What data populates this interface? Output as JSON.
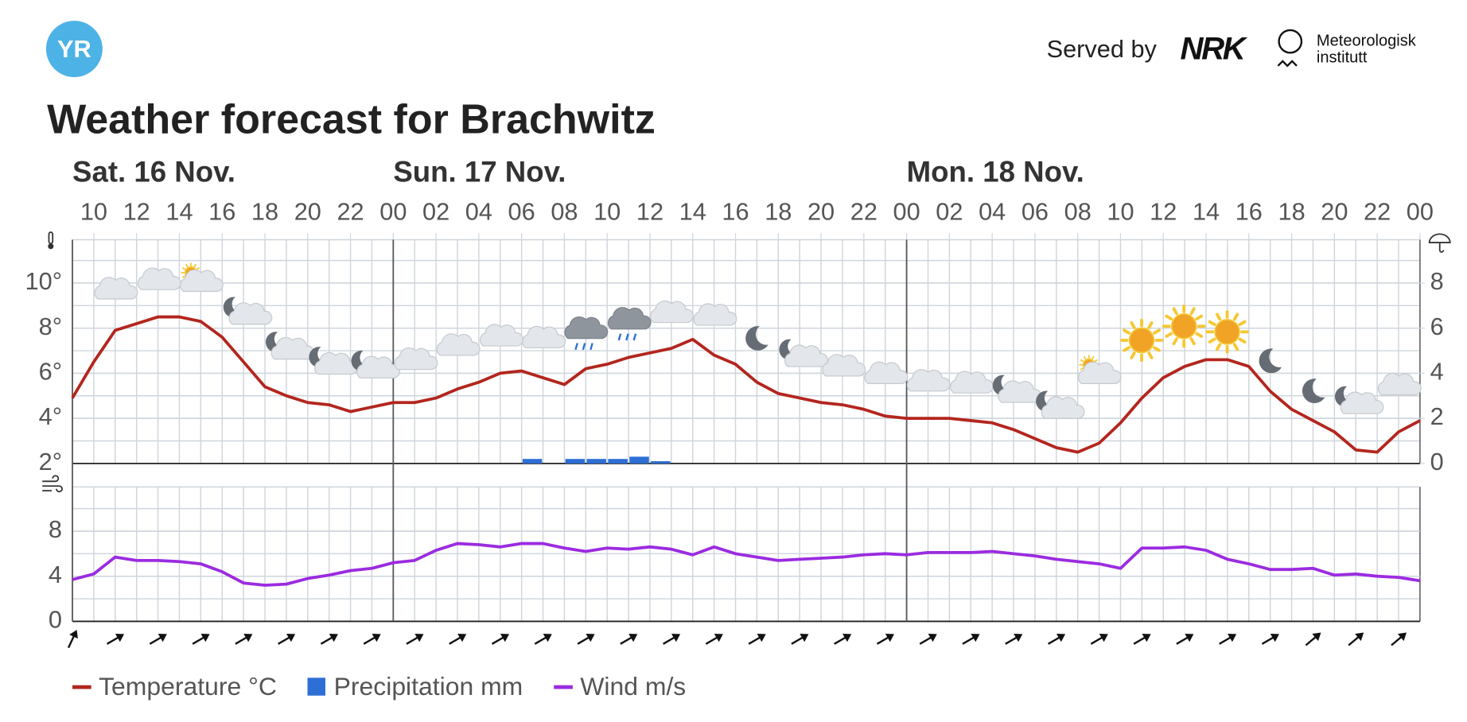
{
  "header": {
    "logo": "YR",
    "served_by": "Served by",
    "nrk": "NRK",
    "met": [
      "Meteorologisk",
      "institutt"
    ]
  },
  "title": "Weather forecast for Brachwitz",
  "chart_data": [
    {
      "type": "line",
      "days": [
        "Sat. 16 Nov.",
        "Sun. 17 Nov.",
        "Mon. 18 Nov."
      ],
      "day_starts": [
        9,
        24,
        48
      ],
      "x": [
        9,
        10,
        11,
        12,
        13,
        14,
        15,
        16,
        17,
        18,
        19,
        20,
        21,
        22,
        23,
        24,
        25,
        26,
        27,
        28,
        29,
        30,
        31,
        32,
        33,
        34,
        35,
        36,
        37,
        38,
        39,
        40,
        41,
        42,
        43,
        44,
        45,
        46,
        47,
        48,
        49,
        50,
        51,
        52,
        53,
        54,
        55,
        56,
        57,
        58,
        59,
        60,
        61,
        62,
        63,
        64,
        65,
        66,
        67,
        68,
        69,
        70,
        71,
        72
      ],
      "xlim": [
        9,
        72
      ],
      "xticks": [
        10,
        12,
        14,
        16,
        18,
        20,
        22,
        {
          "value": 24,
          "label": "00"
        },
        {
          "value": 26,
          "label": "02"
        },
        {
          "value": 28,
          "label": "04"
        },
        {
          "value": 30,
          "label": "06"
        },
        {
          "value": 32,
          "label": "08"
        },
        {
          "value": 34,
          "label": "10"
        },
        {
          "value": 36,
          "label": "12"
        },
        {
          "value": 38,
          "label": "14"
        },
        {
          "value": 40,
          "label": "16"
        },
        {
          "value": 42,
          "label": "18"
        },
        {
          "value": 44,
          "label": "20"
        },
        {
          "value": 46,
          "label": "22"
        },
        {
          "value": 48,
          "label": "00"
        },
        {
          "value": 50,
          "label": "02"
        },
        {
          "value": 52,
          "label": "04"
        },
        {
          "value": 54,
          "label": "06"
        },
        {
          "value": 56,
          "label": "08"
        },
        {
          "value": 58,
          "label": "10"
        },
        {
          "value": 60,
          "label": "12"
        },
        {
          "value": 62,
          "label": "14"
        },
        {
          "value": 64,
          "label": "16"
        },
        {
          "value": 66,
          "label": "18"
        },
        {
          "value": 68,
          "label": "20"
        },
        {
          "value": 70,
          "label": "22"
        },
        {
          "value": 72,
          "label": "00"
        }
      ],
      "ylim": [
        2,
        11.92
      ],
      "yticks": [
        {
          "value": 2,
          "label": "2°"
        },
        {
          "value": 4,
          "label": "4°"
        },
        {
          "value": 6,
          "label": "6°"
        },
        {
          "value": 8,
          "label": "8°"
        },
        {
          "value": 10,
          "label": "10°"
        }
      ],
      "y2lim": [
        0,
        9.92
      ],
      "y2ticks": [
        0,
        2,
        4,
        6,
        8
      ],
      "grid": true,
      "series": [
        {
          "name": "Temperature °C",
          "color": "#b3261e",
          "values": [
            4.9,
            6.5,
            7.9,
            8.2,
            8.5,
            8.5,
            8.3,
            7.6,
            6.5,
            5.4,
            5.0,
            4.7,
            4.6,
            4.3,
            4.5,
            4.7,
            4.7,
            4.9,
            5.3,
            5.6,
            6.0,
            6.1,
            5.8,
            5.5,
            6.2,
            6.4,
            6.7,
            6.9,
            7.1,
            7.5,
            6.8,
            6.4,
            5.6,
            5.1,
            4.9,
            4.7,
            4.6,
            4.4,
            4.1,
            4.0,
            4.0,
            4.0,
            3.9,
            3.8,
            3.5,
            3.1,
            2.7,
            2.5,
            2.9,
            3.8,
            4.9,
            5.8,
            6.3,
            6.6,
            6.6,
            6.3,
            5.2,
            4.4,
            3.9,
            3.4,
            2.6,
            2.5,
            3.4,
            3.9
          ]
        },
        {
          "name": "Precipitation mm",
          "color": "#2e6fd6",
          "type": "bar",
          "axis": "y2",
          "values": [
            0,
            0,
            0,
            0,
            0,
            0,
            0,
            0,
            0,
            0,
            0,
            0,
            0,
            0,
            0,
            0,
            0,
            0,
            0,
            0,
            0,
            0.2,
            0,
            0.2,
            0.2,
            0.2,
            0.3,
            0.1,
            0,
            0,
            0,
            0,
            0,
            0,
            0,
            0,
            0,
            0,
            0,
            0,
            0,
            0,
            0,
            0,
            0,
            0,
            0,
            0,
            0,
            0,
            0,
            0,
            0,
            0,
            0,
            0,
            0,
            0,
            0,
            0,
            0,
            0,
            0,
            0
          ]
        }
      ]
    },
    {
      "type": "line",
      "x": [
        9,
        10,
        11,
        12,
        13,
        14,
        15,
        16,
        17,
        18,
        19,
        20,
        21,
        22,
        23,
        24,
        25,
        26,
        27,
        28,
        29,
        30,
        31,
        32,
        33,
        34,
        35,
        36,
        37,
        38,
        39,
        40,
        41,
        42,
        43,
        44,
        45,
        46,
        47,
        48,
        49,
        50,
        51,
        52,
        53,
        54,
        55,
        56,
        57,
        58,
        59,
        60,
        61,
        62,
        63,
        64,
        65,
        66,
        67,
        68,
        69,
        70,
        71,
        72
      ],
      "xlim": [
        9,
        72
      ],
      "ylim": [
        0,
        11.92
      ],
      "yticks": [
        0,
        4,
        8
      ],
      "grid": true,
      "series": [
        {
          "name": "Wind m/s",
          "color": "#9b2be0",
          "values": [
            3.7,
            4.2,
            5.7,
            5.4,
            5.4,
            5.3,
            5.1,
            4.4,
            3.4,
            3.2,
            3.3,
            3.8,
            4.1,
            4.5,
            4.7,
            5.2,
            5.4,
            6.3,
            6.9,
            6.8,
            6.6,
            6.9,
            6.9,
            6.5,
            6.2,
            6.5,
            6.4,
            6.6,
            6.4,
            5.9,
            6.6,
            6.0,
            5.7,
            5.4,
            5.5,
            5.6,
            5.7,
            5.9,
            6.0,
            5.9,
            6.1,
            6.1,
            6.1,
            6.2,
            6.0,
            5.8,
            5.5,
            5.3,
            5.1,
            4.7,
            6.5,
            6.5,
            6.6,
            6.3,
            5.5,
            5.1,
            4.6,
            4.6,
            4.7,
            4.1,
            4.2,
            4.0,
            3.9,
            3.6
          ]
        }
      ]
    }
  ]
}
